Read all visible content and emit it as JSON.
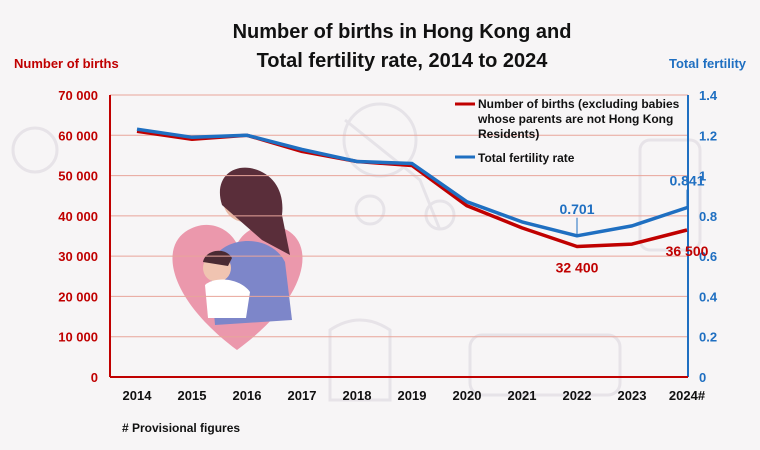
{
  "chart_data": {
    "type": "line",
    "title_lines": [
      "Number of births in Hong Kong and",
      "Total fertility rate, 2014 to 2024"
    ],
    "left_axis_title": "Number of births",
    "right_axis_title": "Total fertility",
    "x": [
      "2014",
      "2015",
      "2016",
      "2017",
      "2018",
      "2019",
      "2020",
      "2021",
      "2022",
      "2023",
      "2024#"
    ],
    "left_ticks": [
      "0",
      "10 000",
      "20 000",
      "30 000",
      "40 000",
      "50 000",
      "60 000",
      "70 000"
    ],
    "right_ticks": [
      "0",
      "0.2",
      "0.4",
      "0.6",
      "0.8",
      "1",
      "1.2",
      "1.4"
    ],
    "left_ylim": [
      0,
      70000
    ],
    "right_ylim": [
      0,
      1.4
    ],
    "grid": true,
    "legend_position": "top-right",
    "legend_lines": [
      [
        "Number of births (excluding babies",
        "whose parents are not Hong Kong",
        "Residents)"
      ],
      [
        "Total fertility rate"
      ]
    ],
    "series": [
      {
        "name": "Number of births (excluding babies whose parents are not Hong Kong Residents)",
        "axis": "left",
        "color": "#c00000",
        "values": [
          61000,
          59000,
          60000,
          56000,
          53500,
          52500,
          42500,
          37000,
          32400,
          33000,
          36500
        ]
      },
      {
        "name": "Total fertility rate",
        "axis": "right",
        "color": "#1f6fc1",
        "values": [
          1.23,
          1.19,
          1.2,
          1.13,
          1.07,
          1.06,
          0.87,
          0.77,
          0.701,
          0.75,
          0.841
        ]
      }
    ],
    "data_labels": [
      {
        "series": 0,
        "index": 8,
        "text": "32 400"
      },
      {
        "series": 0,
        "index": 10,
        "text": "36 500"
      },
      {
        "series": 1,
        "index": 8,
        "text": "0.701"
      },
      {
        "series": 1,
        "index": 10,
        "text": "0.841"
      }
    ],
    "footnote": "# Provisional figures"
  },
  "colors": {
    "birth_axis": "#c00000",
    "tfr_axis": "#1f6fc1",
    "grid": "#e8a59a",
    "heart": "#e98ea4"
  },
  "decorations": [
    "mother-and-baby-heart-illustration",
    "baby-items-background"
  ]
}
